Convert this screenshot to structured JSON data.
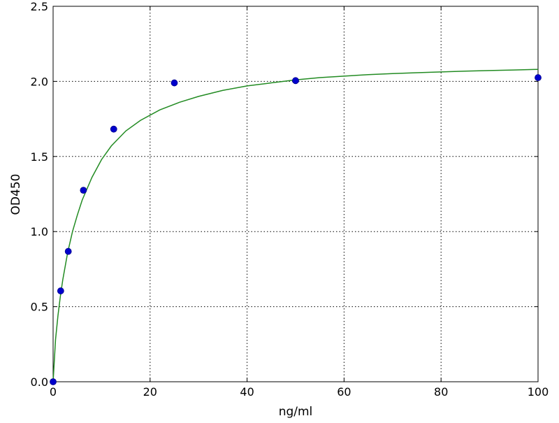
{
  "chart_data": {
    "type": "scatter",
    "xlabel": "ng/ml",
    "ylabel": "OD450",
    "xlim": [
      0,
      100
    ],
    "ylim": [
      0,
      2.5
    ],
    "grid": true,
    "x_ticks": [
      0,
      20,
      40,
      60,
      80,
      100
    ],
    "y_ticks": [
      0.0,
      0.5,
      1.0,
      1.5,
      2.0,
      2.5
    ],
    "x_tick_labels": [
      "0",
      "20",
      "40",
      "60",
      "80",
      "100"
    ],
    "y_tick_labels": [
      "0.0",
      "0.5",
      "1.0",
      "1.5",
      "2.0",
      "2.5"
    ],
    "points": {
      "color": "#0000cc",
      "x": [
        0,
        1.5625,
        3.125,
        6.25,
        12.5,
        25,
        50,
        100
      ],
      "y": [
        0.0,
        0.605,
        0.868,
        1.275,
        1.682,
        1.99,
        2.005,
        2.025
      ]
    },
    "curve": {
      "color": "#228b22",
      "x": [
        0,
        0.5,
        1,
        1.5,
        2,
        3,
        4,
        5,
        6,
        8,
        10,
        12,
        15,
        18,
        22,
        26,
        30,
        35,
        40,
        45,
        50,
        55,
        60,
        65,
        70,
        75,
        80,
        85,
        90,
        95,
        100
      ],
      "y": [
        0.0,
        0.28,
        0.44,
        0.57,
        0.68,
        0.86,
        1.0,
        1.11,
        1.21,
        1.36,
        1.48,
        1.57,
        1.67,
        1.74,
        1.81,
        1.86,
        1.9,
        1.94,
        1.97,
        1.99,
        2.01,
        2.025,
        2.035,
        2.045,
        2.052,
        2.058,
        2.063,
        2.068,
        2.072,
        2.076,
        2.08
      ]
    }
  }
}
